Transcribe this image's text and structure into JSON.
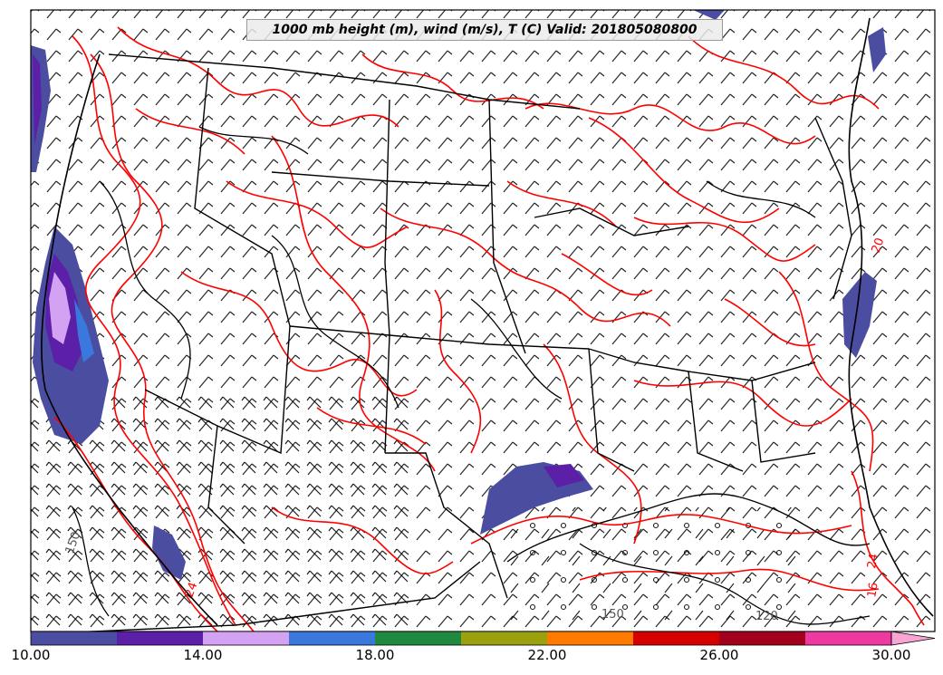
{
  "title": "1000 mb height (m), wind (m/s), T (C) Valid: 201805080800",
  "colorbar": {
    "labels": [
      "10.00",
      "14.00",
      "18.00",
      "22.00",
      "26.00",
      "30.00"
    ],
    "colors": [
      "#4b4da0",
      "#5b1fa8",
      "#d3a2f2",
      "#3a78dd",
      "#1f8a3f",
      "#9ba10e",
      "#ff7a00",
      "#d60000",
      "#a3001e",
      "#ee3aa0",
      "#f8a5d6"
    ]
  },
  "contour_labels": [
    "150",
    "150",
    "120",
    "24",
    "24",
    "20",
    "16"
  ],
  "colors": {
    "temperature_contour": "#ff0000",
    "height_contour": "#000000",
    "border": "#000000"
  }
}
